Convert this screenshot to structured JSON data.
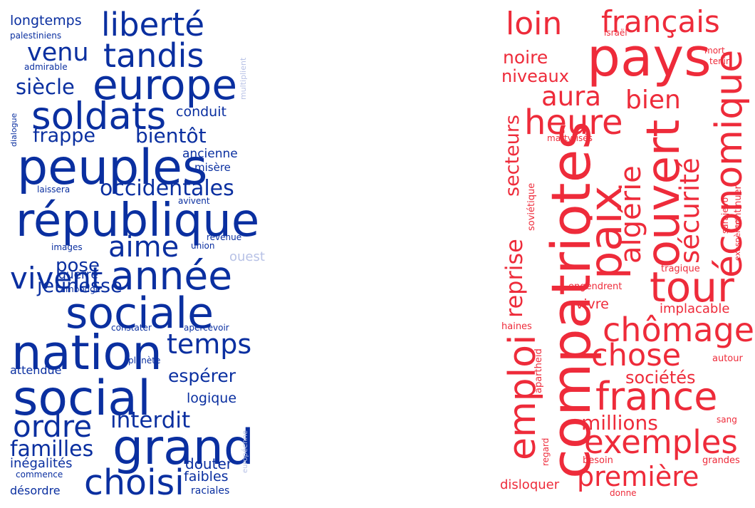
{
  "colors": {
    "blue": "#0a2fa0",
    "blue_light": "#b8c2e6",
    "red": "#ee2b3a",
    "red_light": "#f6a3ab"
  },
  "left_cloud": {
    "color": "#0a2fa0",
    "words": [
      {
        "text": "liberté",
        "weight": 0.42
      },
      {
        "text": "longtemps",
        "weight": 0.18
      },
      {
        "text": "palestiniens",
        "weight": 0.1
      },
      {
        "text": "venu",
        "weight": 0.33
      },
      {
        "text": "tandis",
        "weight": 0.44
      },
      {
        "text": "admirable",
        "weight": 0.09
      },
      {
        "text": "europe",
        "weight": 0.57
      },
      {
        "text": "siècle",
        "weight": 0.28
      },
      {
        "text": "soldats",
        "weight": 0.52
      },
      {
        "text": "conduit",
        "weight": 0.18
      },
      {
        "text": "frappe",
        "weight": 0.26
      },
      {
        "text": "bientôt",
        "weight": 0.27
      },
      {
        "text": "peuples",
        "weight": 0.68
      },
      {
        "text": "ancienne",
        "weight": 0.16
      },
      {
        "text": "misère",
        "weight": 0.14
      },
      {
        "text": "occidentales",
        "weight": 0.29
      },
      {
        "text": "laissera",
        "weight": 0.1
      },
      {
        "text": "république",
        "weight": 0.64
      },
      {
        "text": "avivent",
        "weight": 0.09
      },
      {
        "text": "revenue",
        "weight": 0.1
      },
      {
        "text": "aime",
        "weight": 0.39
      },
      {
        "text": "images",
        "weight": 0.09
      },
      {
        "text": "union",
        "weight": 0.09
      },
      {
        "text": "pose",
        "weight": 0.25
      },
      {
        "text": "année",
        "weight": 0.55
      },
      {
        "text": "jeunesse",
        "weight": 0.27
      },
      {
        "text": "guerre",
        "weight": 0.17
      },
      {
        "text": "cambodge",
        "weight": 0.09
      },
      {
        "text": "vivent",
        "weight": 0.42
      },
      {
        "text": "ouest",
        "weight": 0.18
      },
      {
        "text": "sociale",
        "weight": 0.6
      },
      {
        "text": "constater",
        "weight": 0.1
      },
      {
        "text": "apercevoir",
        "weight": 0.1
      },
      {
        "text": "nation",
        "weight": 0.67
      },
      {
        "text": "temps",
        "weight": 0.38
      },
      {
        "text": "attendue",
        "weight": 0.14
      },
      {
        "text": "planète",
        "weight": 0.09
      },
      {
        "text": "espérer",
        "weight": 0.25
      },
      {
        "text": "social",
        "weight": 0.68
      },
      {
        "text": "logique",
        "weight": 0.18
      },
      {
        "text": "ordre",
        "weight": 0.42
      },
      {
        "text": "interdit",
        "weight": 0.31
      },
      {
        "text": "grand",
        "weight": 0.68
      },
      {
        "text": "familles",
        "weight": 0.3
      },
      {
        "text": "inégalités",
        "weight": 0.18
      },
      {
        "text": "douter",
        "weight": 0.2
      },
      {
        "text": "commence",
        "weight": 0.1
      },
      {
        "text": "choisi",
        "weight": 0.49
      },
      {
        "text": "faibles",
        "weight": 0.19
      },
      {
        "text": "désordre",
        "weight": 0.16
      },
      {
        "text": "raciales",
        "weight": 0.12
      },
      {
        "text": "dialogue",
        "weight": 0.08
      },
      {
        "text": "multiplient",
        "weight": 0.08
      },
      {
        "text": "européenne",
        "weight": 0.07
      }
    ]
  },
  "right_cloud": {
    "color": "#ee2b3a",
    "words": [
      {
        "text": "loin",
        "weight": 0.43
      },
      {
        "text": "français",
        "weight": 0.41
      },
      {
        "text": "israël",
        "weight": 0.09
      },
      {
        "text": "pays",
        "weight": 0.74
      },
      {
        "text": "mort",
        "weight": 0.09
      },
      {
        "text": "tenir",
        "weight": 0.09
      },
      {
        "text": "noire",
        "weight": 0.22
      },
      {
        "text": "niveaux",
        "weight": 0.22
      },
      {
        "text": "aura",
        "weight": 0.37
      },
      {
        "text": "bien",
        "weight": 0.35
      },
      {
        "text": "heure",
        "weight": 0.48
      },
      {
        "text": "économique",
        "weight": 0.53
      },
      {
        "text": "ouvert",
        "weight": 0.64
      },
      {
        "text": "sécurité",
        "weight": 0.37
      },
      {
        "text": "secteurs",
        "weight": 0.27
      },
      {
        "text": "martyrisés",
        "weight": 0.09
      },
      {
        "text": "paix",
        "weight": 0.63
      },
      {
        "text": "algérie",
        "weight": 0.41
      },
      {
        "text": "soviétique",
        "weight": 0.12
      },
      {
        "text": "continuer",
        "weight": 0.13
      },
      {
        "text": "compatriotes",
        "weight": 0.78
      },
      {
        "text": "reprise",
        "weight": 0.33
      },
      {
        "text": "sarajevo",
        "weight": 0.09
      },
      {
        "text": "exaspèrent",
        "weight": 0.08
      },
      {
        "text": "tragique",
        "weight": 0.1
      },
      {
        "text": "engendrent",
        "weight": 0.1
      },
      {
        "text": "tour",
        "weight": 0.59
      },
      {
        "text": "vivre",
        "weight": 0.16
      },
      {
        "text": "implacable",
        "weight": 0.15
      },
      {
        "text": "chômage",
        "weight": 0.46
      },
      {
        "text": "haines",
        "weight": 0.1
      },
      {
        "text": "chose",
        "weight": 0.43
      },
      {
        "text": "autour",
        "weight": 0.1
      },
      {
        "text": "emploi",
        "weight": 0.52
      },
      {
        "text": "apartheid",
        "weight": 0.1
      },
      {
        "text": "sociétés",
        "weight": 0.22
      },
      {
        "text": "france",
        "weight": 0.55
      },
      {
        "text": "millions",
        "weight": 0.25
      },
      {
        "text": "sang",
        "weight": 0.09
      },
      {
        "text": "regard",
        "weight": 0.08
      },
      {
        "text": "exemples",
        "weight": 0.44
      },
      {
        "text": "besoin",
        "weight": 0.1
      },
      {
        "text": "grandes",
        "weight": 0.1
      },
      {
        "text": "première",
        "weight": 0.38
      },
      {
        "text": "disloquer",
        "weight": 0.15
      },
      {
        "text": "donne",
        "weight": 0.09
      }
    ]
  }
}
